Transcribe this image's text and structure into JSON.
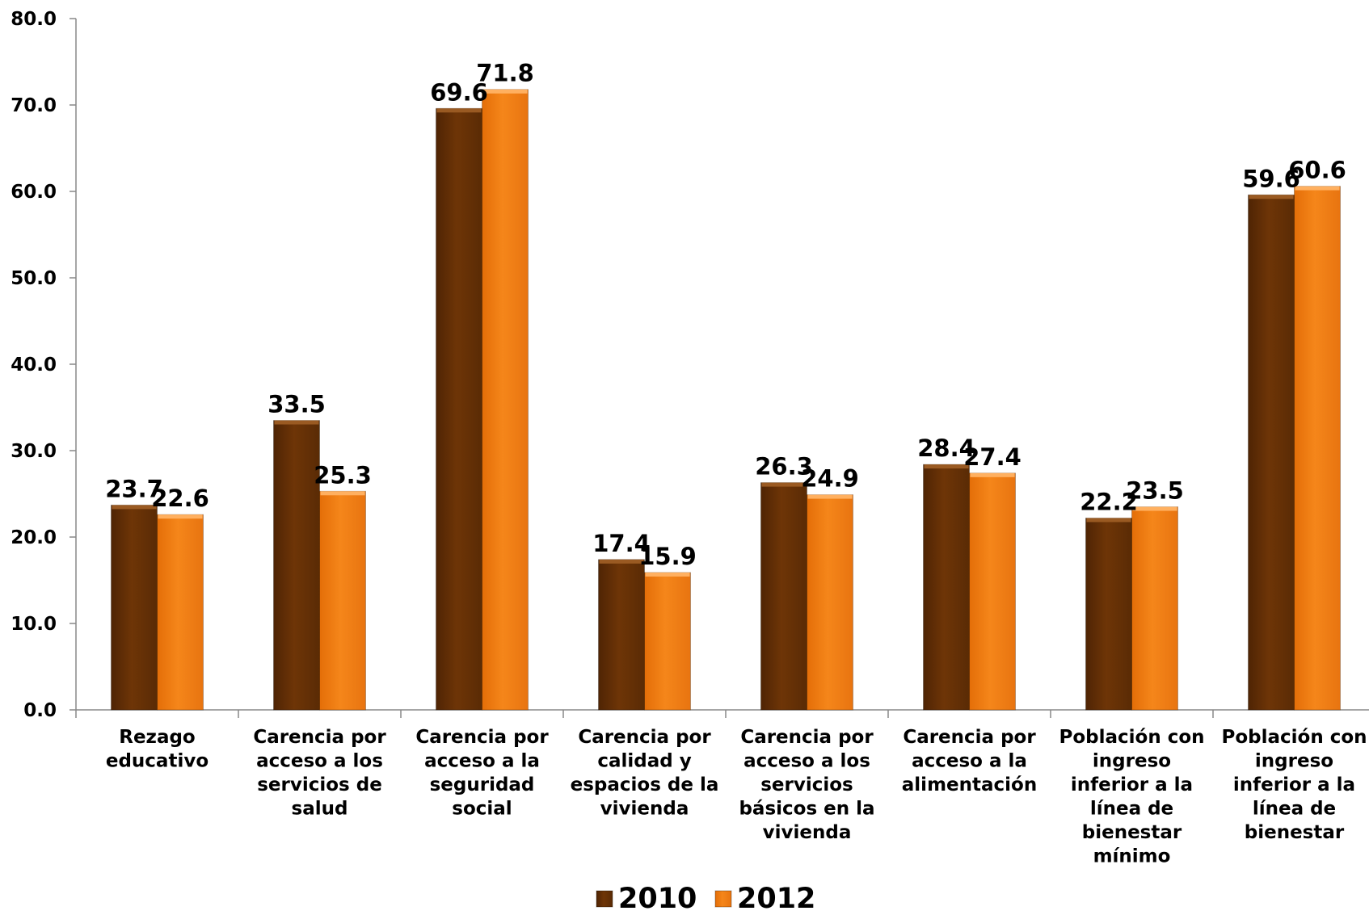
{
  "chart_data": {
    "type": "bar",
    "title": "",
    "xlabel": "",
    "ylabel": "",
    "ylim": [
      0,
      80
    ],
    "yticks": [
      "0.0",
      "10.0",
      "20.0",
      "30.0",
      "40.0",
      "50.0",
      "60.0",
      "70.0",
      "80.0"
    ],
    "grid": false,
    "legend_position": "bottom",
    "categories": [
      [
        "Rezago",
        "educativo"
      ],
      [
        "Carencia por",
        "acceso a los",
        "servicios de",
        "salud"
      ],
      [
        "Carencia por",
        "acceso a la",
        "seguridad",
        "social"
      ],
      [
        "Carencia por",
        "calidad y",
        "espacios de la",
        "vivienda"
      ],
      [
        "Carencia por",
        "acceso a los",
        "servicios",
        "básicos en la",
        "vivienda"
      ],
      [
        "Carencia por",
        "acceso a la",
        "alimentación"
      ],
      [
        "Población con",
        "ingreso",
        "inferior a la",
        "línea de",
        "bienestar",
        "mínimo"
      ],
      [
        "Población con",
        "ingreso",
        "inferior a la",
        "línea de",
        "bienestar"
      ]
    ],
    "series": [
      {
        "name": "2010",
        "color": "#6e3507",
        "values": [
          23.7,
          33.5,
          69.6,
          17.4,
          26.3,
          28.4,
          22.2,
          59.6
        ],
        "labels": [
          "23.7",
          "33.5",
          "69.6",
          "17.4",
          "26.3",
          "28.4",
          "22.2",
          "59.6"
        ]
      },
      {
        "name": "2012",
        "color": "#f07e12",
        "values": [
          22.6,
          25.3,
          71.8,
          15.9,
          24.9,
          27.4,
          23.5,
          60.6
        ],
        "labels": [
          "22.6",
          "25.3",
          "71.8",
          "15.9",
          "24.9",
          "27.4",
          "23.5",
          "60.6"
        ]
      }
    ]
  }
}
